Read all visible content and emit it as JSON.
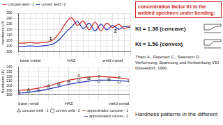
{
  "chart_data": [
    {
      "type": "line",
      "y_label": "hardness HV",
      "categories": [
        null,
        null,
        "base metal",
        null,
        null,
        null,
        null,
        null,
        null,
        "HAZ",
        null,
        null,
        null,
        null,
        null,
        null,
        "weld metal",
        null,
        null,
        null
      ],
      "series": [
        {
          "name": "concave weld - 1",
          "color": "#d62020",
          "line_style": "solid",
          "values": [
            196,
            196,
            197,
            196,
            197,
            198,
            203,
            215,
            232,
            242,
            228,
            236,
            220,
            234,
            218,
            232,
            224,
            230,
            222,
            228
          ]
        },
        {
          "name": "convex weld - 2",
          "color": "#2030c0",
          "line_style": "solid",
          "values": [
            190,
            190,
            191,
            190,
            191,
            192,
            195,
            203,
            215,
            225,
            235,
            222,
            232,
            218,
            230,
            220,
            228,
            221,
            226,
            224
          ]
        }
      ],
      "annotations": [
        "1",
        "2"
      ],
      "ylim": [
        180,
        250
      ],
      "yticks": [
        180,
        190,
        200,
        210,
        220,
        230,
        240,
        250
      ],
      "grid": true,
      "legend": "top-left"
    },
    {
      "type": "line",
      "y_label": "hardness HV",
      "categories": [
        null,
        "base metal",
        null,
        null,
        null,
        "HAZ",
        null,
        null,
        null,
        null,
        "weld metal",
        null
      ],
      "series": [
        {
          "name": "concave weld - 1",
          "type": "scatter",
          "marker": "triangle",
          "color": "#555555",
          "values": [
            188,
            192,
            null,
            200,
            205,
            210,
            222,
            215,
            220,
            212,
            218,
            210
          ]
        },
        {
          "name": "convex weld - 2",
          "type": "scatter",
          "marker": "circle",
          "color": "#555555",
          "values": [
            185,
            187,
            190,
            195,
            203,
            208,
            212,
            216,
            210,
            214,
            208,
            null
          ]
        },
        {
          "name": "approximation concave - 1",
          "type": "line",
          "line_style": "solid",
          "color": "#d62020",
          "values": [
            190,
            192,
            195,
            200,
            206,
            212,
            216,
            219,
            220,
            219,
            217,
            214
          ]
        },
        {
          "name": "approximation convex - 2",
          "type": "line",
          "line_style": "solid",
          "color": "#2030c0",
          "values": [
            184,
            186,
            189,
            193,
            198,
            203,
            207,
            210,
            212,
            212,
            211,
            209
          ]
        }
      ],
      "ylim": [
        180,
        240
      ],
      "yticks": [
        180,
        190,
        200,
        210,
        220,
        230,
        240
      ],
      "grid": true,
      "legend": "bottom-right"
    }
  ],
  "text": {
    "box": "concentration factor Kt in the welded specimen under bending:",
    "kt": [
      "Kt = 1.38 (concave)",
      "Kt = 1.56 (convex)"
    ],
    "reference": "Tham A., Petersen C., Swenson O., Verformung, Spannung und Kerbwirkung VDI, Düsseldorf, 1960.",
    "caption": "Hardness patterns in the different"
  }
}
